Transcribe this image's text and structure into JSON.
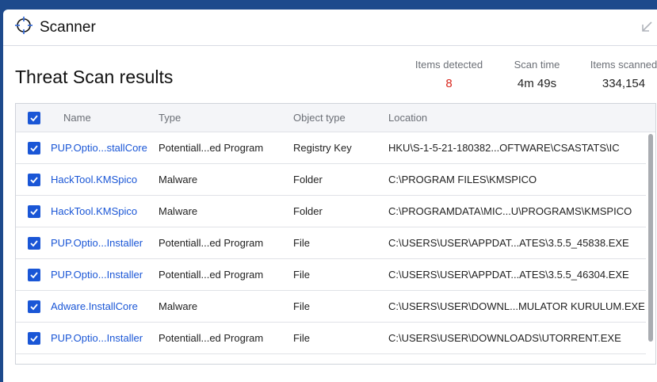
{
  "window": {
    "title": "Scanner",
    "icon": "crosshair-icon",
    "collapse_icon": "arrow-down-left-icon"
  },
  "heading": "Threat Scan results",
  "stats": [
    {
      "label": "Items detected",
      "value": "8",
      "color": "#d9261c"
    },
    {
      "label": "Scan time",
      "value": "4m 49s"
    },
    {
      "label": "Items scanned",
      "value": "334,154"
    }
  ],
  "table": {
    "columns": [
      "Name",
      "Type",
      "Object type",
      "Location"
    ],
    "select_all_checked": true,
    "rows": [
      {
        "checked": true,
        "name": "PUP.Optio...stallCore",
        "type": "Potentiall...ed Program",
        "object_type": "Registry Key",
        "location": "HKU\\S-1-5-21-180382...OFTWARE\\CSASTATS\\IC"
      },
      {
        "checked": true,
        "name": "HackTool.KMSpico",
        "type": "Malware",
        "object_type": "Folder",
        "location": "C:\\PROGRAM FILES\\KMSPICO"
      },
      {
        "checked": true,
        "name": "HackTool.KMSpico",
        "type": "Malware",
        "object_type": "Folder",
        "location": "C:\\PROGRAMDATA\\MIC...U\\PROGRAMS\\KMSPICO"
      },
      {
        "checked": true,
        "name": "PUP.Optio...Installer",
        "type": "Potentiall...ed Program",
        "object_type": "File",
        "location": "C:\\USERS\\USER\\APPDAT...ATES\\3.5.5_45838.EXE"
      },
      {
        "checked": true,
        "name": "PUP.Optio...Installer",
        "type": "Potentiall...ed Program",
        "object_type": "File",
        "location": "C:\\USERS\\USER\\APPDAT...ATES\\3.5.5_46304.EXE"
      },
      {
        "checked": true,
        "name": "Adware.InstallCore",
        "type": "Malware",
        "object_type": "File",
        "location": "C:\\USERS\\USER\\DOWNL...MULATOR KURULUM.EXE"
      },
      {
        "checked": true,
        "name": "PUP.Optio...Installer",
        "type": "Potentiall...ed Program",
        "object_type": "File",
        "location": "C:\\USERS\\USER\\DOWNLOADS\\UTORRENT.EXE"
      }
    ]
  },
  "colors": {
    "accent": "#1a56d6",
    "background": "#1d4a8c"
  }
}
